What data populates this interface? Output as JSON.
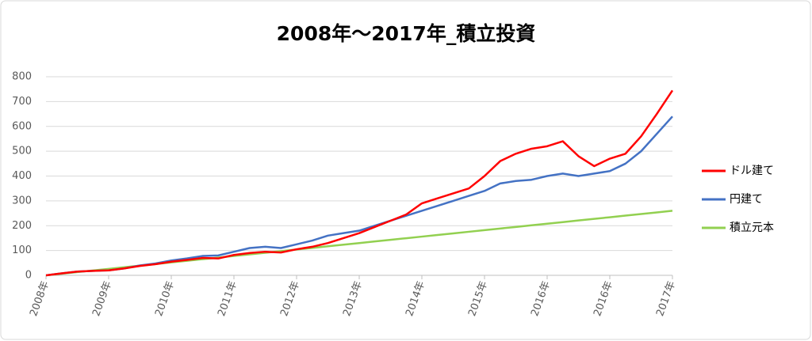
{
  "chart_data": {
    "type": "line",
    "title": "2008年～2017年_積立投資",
    "categories": [
      "2008年",
      null,
      null,
      null,
      "2009年",
      null,
      null,
      null,
      "2010年",
      null,
      null,
      null,
      "2011年",
      null,
      null,
      null,
      "2012年",
      null,
      null,
      null,
      "2013年",
      null,
      null,
      null,
      "2014年",
      null,
      null,
      null,
      "2015年",
      null,
      null,
      null,
      "2016年",
      null,
      null,
      null,
      "2016年",
      null,
      null,
      null,
      "2017年"
    ],
    "series": [
      {
        "name": "ドル建て",
        "color": "#ff0000",
        "values": [
          0,
          8,
          15,
          18,
          20,
          28,
          38,
          45,
          55,
          62,
          70,
          68,
          82,
          90,
          95,
          92,
          105,
          115,
          130,
          150,
          170,
          195,
          220,
          245,
          290,
          310,
          330,
          350,
          400,
          460,
          490,
          510,
          520,
          540,
          480,
          440,
          470,
          490,
          560,
          650,
          745
        ]
      },
      {
        "name": "円建て",
        "color": "#4472c4",
        "values": [
          0,
          8,
          15,
          18,
          20,
          28,
          40,
          48,
          60,
          68,
          78,
          80,
          95,
          110,
          115,
          110,
          125,
          140,
          160,
          170,
          180,
          200,
          220,
          240,
          260,
          280,
          300,
          320,
          340,
          370,
          380,
          385,
          400,
          410,
          400,
          410,
          420,
          450,
          500,
          570,
          640
        ]
      },
      {
        "name": "積立元本",
        "color": "#92d050",
        "values": [
          0,
          6.5,
          13,
          19.5,
          26,
          32.5,
          39,
          45.5,
          52,
          58.5,
          65,
          71.5,
          78,
          84.5,
          91,
          97.5,
          104,
          110.5,
          117,
          123.5,
          130,
          136.5,
          143,
          149.5,
          156,
          162.5,
          169,
          175.5,
          182,
          188.5,
          195,
          201.5,
          208,
          214.5,
          221,
          227.5,
          234,
          240.5,
          247,
          253.5,
          260
        ]
      }
    ],
    "ylim": [
      0,
      800
    ],
    "yticks": [
      0,
      100,
      200,
      300,
      400,
      500,
      600,
      700,
      800
    ],
    "grid": true,
    "legend": "right"
  }
}
